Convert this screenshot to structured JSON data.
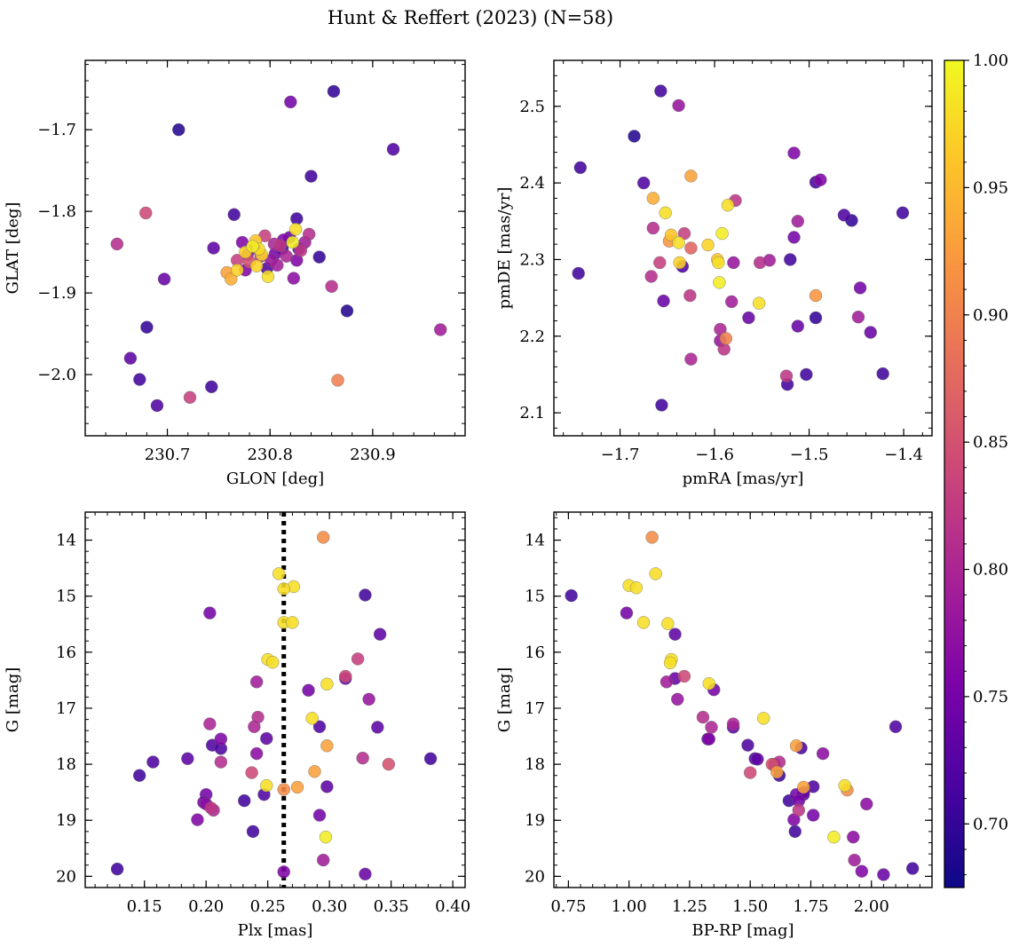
{
  "title": "Hunt & Reffert (2023) (N=58)",
  "colorbar": {
    "ticks": [
      0.7,
      0.75,
      0.8,
      0.85,
      0.9,
      0.95,
      1.0
    ],
    "tick_labels": [
      "0.70",
      "0.75",
      "0.80",
      "0.85",
      "0.90",
      "0.95",
      "1.00"
    ],
    "range": [
      0.675,
      1.0
    ],
    "colormap": "plasma"
  },
  "chart_data": [
    {
      "type": "scatter",
      "name": "glon-glat",
      "xlabel": "GLON [deg]",
      "ylabel": "GLAT [deg]",
      "xlim": [
        230.62,
        230.99
      ],
      "ylim": [
        -2.075,
        -1.615
      ],
      "y_inverted": false,
      "xticks": [
        230.7,
        230.8,
        230.9
      ],
      "xtick_labels": [
        "230.7",
        "230.8",
        "230.9"
      ],
      "yticks": [
        -1.7,
        -1.8,
        -1.9,
        -2.0
      ],
      "ytick_labels": [
        "−1.7",
        "−1.8",
        "−1.9",
        "−2.0"
      ],
      "points": [
        [
          230.651,
          -1.84,
          0.81
        ],
        [
          230.711,
          -1.7,
          0.69
        ],
        [
          230.679,
          -1.802,
          0.84
        ],
        [
          230.697,
          -1.883,
          0.74
        ],
        [
          230.68,
          -1.942,
          0.7
        ],
        [
          230.664,
          -1.98,
          0.73
        ],
        [
          230.673,
          -2.006,
          0.71
        ],
        [
          230.69,
          -2.038,
          0.72
        ],
        [
          230.722,
          -2.028,
          0.83
        ],
        [
          230.743,
          -2.015,
          0.71
        ],
        [
          230.745,
          -1.845,
          0.73
        ],
        [
          230.765,
          -1.804,
          0.71
        ],
        [
          230.82,
          -1.666,
          0.75
        ],
        [
          230.862,
          -1.653,
          0.7
        ],
        [
          230.92,
          -1.724,
          0.72
        ],
        [
          230.84,
          -1.757,
          0.71
        ],
        [
          230.826,
          -1.809,
          0.71
        ],
        [
          230.848,
          -1.856,
          0.7
        ],
        [
          230.875,
          -1.922,
          0.69
        ],
        [
          230.86,
          -1.892,
          0.81
        ],
        [
          230.966,
          -1.945,
          0.79
        ],
        [
          230.866,
          -2.007,
          0.9
        ],
        [
          230.758,
          -1.875,
          0.93
        ],
        [
          230.762,
          -1.883,
          0.94
        ],
        [
          230.768,
          -1.86,
          0.83
        ],
        [
          230.773,
          -1.838,
          0.76
        ],
        [
          230.776,
          -1.85,
          0.97
        ],
        [
          230.78,
          -1.862,
          0.85
        ],
        [
          230.783,
          -1.843,
          0.99
        ],
        [
          230.786,
          -1.836,
          0.96
        ],
        [
          230.789,
          -1.846,
          0.98
        ],
        [
          230.792,
          -1.853,
          0.97
        ],
        [
          230.795,
          -1.83,
          0.83
        ],
        [
          230.798,
          -1.88,
          0.98
        ],
        [
          230.801,
          -1.86,
          0.78
        ],
        [
          230.804,
          -1.84,
          0.8
        ],
        [
          230.807,
          -1.866,
          0.79
        ],
        [
          230.81,
          -1.842,
          0.82
        ],
        [
          230.813,
          -1.835,
          0.76
        ],
        [
          230.816,
          -1.855,
          0.8
        ],
        [
          230.819,
          -1.832,
          0.74
        ],
        [
          230.822,
          -1.838,
          0.99
        ],
        [
          230.825,
          -1.822,
          0.98
        ],
        [
          230.823,
          -1.882,
          0.77
        ],
        [
          230.826,
          -1.86,
          0.76
        ],
        [
          230.83,
          -1.848,
          0.82
        ],
        [
          230.834,
          -1.838,
          0.79
        ],
        [
          230.838,
          -1.828,
          0.81
        ],
        [
          230.768,
          -1.872,
          0.97
        ],
        [
          230.776,
          -1.872,
          0.76
        ],
        [
          230.787,
          -1.867,
          0.97
        ],
        [
          230.791,
          -1.855,
          0.82
        ],
        [
          230.785,
          -1.845,
          0.73
        ],
        [
          230.778,
          -1.853,
          0.79
        ],
        [
          230.805,
          -1.852,
          0.75
        ],
        [
          230.797,
          -1.87,
          0.72
        ],
        [
          230.812,
          -1.846,
          0.71
        ],
        [
          230.828,
          -1.846,
          0.73
        ]
      ]
    },
    {
      "type": "scatter",
      "name": "pmra-pmde",
      "xlabel": "pmRA [mas/yr]",
      "ylabel": "pmDE [mas/yr]",
      "xlim": [
        -1.77,
        -1.37
      ],
      "ylim": [
        2.07,
        2.56
      ],
      "y_inverted": false,
      "xticks": [
        -1.7,
        -1.6,
        -1.5,
        -1.4
      ],
      "xtick_labels": [
        "−1.7",
        "−1.6",
        "−1.5",
        "−1.4"
      ],
      "yticks": [
        2.1,
        2.2,
        2.3,
        2.4,
        2.5
      ],
      "ytick_labels": [
        "2.1",
        "2.2",
        "2.3",
        "2.4",
        "2.5"
      ],
      "points": [
        [
          -1.742,
          2.42,
          0.71
        ],
        [
          -1.744,
          2.282,
          0.71
        ],
        [
          -1.685,
          2.461,
          0.69
        ],
        [
          -1.675,
          2.4,
          0.72
        ],
        [
          -1.657,
          2.52,
          0.71
        ],
        [
          -1.638,
          2.501,
          0.78
        ],
        [
          -1.665,
          2.38,
          0.94
        ],
        [
          -1.652,
          2.361,
          0.98
        ],
        [
          -1.646,
          2.332,
          0.96
        ],
        [
          -1.625,
          2.409,
          0.93
        ],
        [
          -1.665,
          2.341,
          0.81
        ],
        [
          -1.658,
          2.296,
          0.83
        ],
        [
          -1.648,
          2.324,
          0.92
        ],
        [
          -1.638,
          2.322,
          0.98
        ],
        [
          -1.632,
          2.334,
          0.83
        ],
        [
          -1.625,
          2.315,
          0.87
        ],
        [
          -1.637,
          2.296,
          0.97
        ],
        [
          -1.634,
          2.291,
          0.72
        ],
        [
          -1.667,
          2.278,
          0.81
        ],
        [
          -1.654,
          2.246,
          0.74
        ],
        [
          -1.626,
          2.253,
          0.82
        ],
        [
          -1.625,
          2.17,
          0.8
        ],
        [
          -1.656,
          2.11,
          0.71
        ],
        [
          -1.607,
          2.319,
          0.97
        ],
        [
          -1.597,
          2.3,
          0.96
        ],
        [
          -1.596,
          2.296,
          0.98
        ],
        [
          -1.595,
          2.27,
          0.99
        ],
        [
          -1.586,
          2.371,
          0.98
        ],
        [
          -1.592,
          2.334,
          0.99
        ],
        [
          -1.578,
          2.377,
          0.82
        ],
        [
          -1.58,
          2.296,
          0.78
        ],
        [
          -1.582,
          2.245,
          0.79
        ],
        [
          -1.594,
          2.209,
          0.8
        ],
        [
          -1.594,
          2.194,
          0.78
        ],
        [
          -1.588,
          2.197,
          0.9
        ],
        [
          -1.59,
          2.183,
          0.82
        ],
        [
          -1.564,
          2.224,
          0.74
        ],
        [
          -1.552,
          2.296,
          0.81
        ],
        [
          -1.553,
          2.243,
          0.98
        ],
        [
          -1.542,
          2.299,
          0.79
        ],
        [
          -1.524,
          2.148,
          0.82
        ],
        [
          -1.523,
          2.137,
          0.71
        ],
        [
          -1.52,
          2.3,
          0.71
        ],
        [
          -1.516,
          2.439,
          0.76
        ],
        [
          -1.516,
          2.329,
          0.75
        ],
        [
          -1.512,
          2.35,
          0.79
        ],
        [
          -1.512,
          2.213,
          0.74
        ],
        [
          -1.503,
          2.15,
          0.71
        ],
        [
          -1.493,
          2.401,
          0.72
        ],
        [
          -1.488,
          2.404,
          0.76
        ],
        [
          -1.493,
          2.224,
          0.7
        ],
        [
          -1.493,
          2.253,
          0.92
        ],
        [
          -1.463,
          2.358,
          0.72
        ],
        [
          -1.455,
          2.351,
          0.7
        ],
        [
          -1.448,
          2.225,
          0.79
        ],
        [
          -1.446,
          2.263,
          0.75
        ],
        [
          -1.435,
          2.205,
          0.74
        ],
        [
          -1.422,
          2.151,
          0.71
        ],
        [
          -1.401,
          2.361,
          0.71
        ]
      ]
    },
    {
      "type": "scatter",
      "name": "plx-g",
      "xlabel": "Plx [mas]",
      "ylabel": "G [mag]",
      "xlim": [
        0.102,
        0.41
      ],
      "ylim": [
        20.2,
        13.5
      ],
      "y_inverted": true,
      "xticks": [
        0.15,
        0.2,
        0.25,
        0.3,
        0.35,
        0.4
      ],
      "xtick_labels": [
        "0.15",
        "0.20",
        "0.25",
        "0.30",
        "0.35",
        "0.40"
      ],
      "yticks": [
        14,
        15,
        16,
        17,
        18,
        19,
        20
      ],
      "ytick_labels": [
        "14",
        "15",
        "16",
        "17",
        "18",
        "19",
        "20"
      ],
      "vline": 0.263,
      "points": [
        [
          0.295,
          13.95,
          0.91
        ],
        [
          0.259,
          14.6,
          0.98
        ],
        [
          0.271,
          14.83,
          0.98
        ],
        [
          0.263,
          14.87,
          0.98
        ],
        [
          0.329,
          14.98,
          0.71
        ],
        [
          0.203,
          15.3,
          0.75
        ],
        [
          0.263,
          15.47,
          0.98
        ],
        [
          0.27,
          15.47,
          0.98
        ],
        [
          0.341,
          15.68,
          0.73
        ],
        [
          0.25,
          16.13,
          0.98
        ],
        [
          0.254,
          16.18,
          0.98
        ],
        [
          0.323,
          16.12,
          0.83
        ],
        [
          0.313,
          16.43,
          0.84
        ],
        [
          0.313,
          16.47,
          0.74
        ],
        [
          0.241,
          16.53,
          0.79
        ],
        [
          0.298,
          16.57,
          0.98
        ],
        [
          0.283,
          16.68,
          0.75
        ],
        [
          0.332,
          16.84,
          0.78
        ],
        [
          0.242,
          17.16,
          0.81
        ],
        [
          0.286,
          17.18,
          0.98
        ],
        [
          0.203,
          17.28,
          0.8
        ],
        [
          0.239,
          17.33,
          0.8
        ],
        [
          0.292,
          17.33,
          0.72
        ],
        [
          0.339,
          17.34,
          0.73
        ],
        [
          0.212,
          17.55,
          0.76
        ],
        [
          0.249,
          17.54,
          0.73
        ],
        [
          0.205,
          17.66,
          0.72
        ],
        [
          0.212,
          17.72,
          0.72
        ],
        [
          0.298,
          17.67,
          0.93
        ],
        [
          0.241,
          17.81,
          0.77
        ],
        [
          0.157,
          17.96,
          0.72
        ],
        [
          0.185,
          17.9,
          0.73
        ],
        [
          0.212,
          17.96,
          0.81
        ],
        [
          0.327,
          17.89,
          0.81
        ],
        [
          0.348,
          18.0,
          0.85
        ],
        [
          0.382,
          17.9,
          0.71
        ],
        [
          0.146,
          18.2,
          0.71
        ],
        [
          0.237,
          18.15,
          0.84
        ],
        [
          0.288,
          18.13,
          0.93
        ],
        [
          0.249,
          18.38,
          0.98
        ],
        [
          0.263,
          18.45,
          0.91
        ],
        [
          0.274,
          18.41,
          0.93
        ],
        [
          0.298,
          18.4,
          0.73
        ],
        [
          0.2,
          18.54,
          0.75
        ],
        [
          0.247,
          18.54,
          0.72
        ],
        [
          0.231,
          18.65,
          0.71
        ],
        [
          0.198,
          18.68,
          0.75
        ],
        [
          0.2,
          18.71,
          0.77
        ],
        [
          0.206,
          18.82,
          0.8
        ],
        [
          0.193,
          18.99,
          0.76
        ],
        [
          0.292,
          18.91,
          0.75
        ],
        [
          0.238,
          19.2,
          0.71
        ],
        [
          0.297,
          19.3,
          0.99
        ],
        [
          0.295,
          19.71,
          0.79
        ],
        [
          0.128,
          19.87,
          0.71
        ],
        [
          0.263,
          19.92,
          0.76
        ],
        [
          0.329,
          19.96,
          0.74
        ],
        [
          0.204,
          18.78,
          0.82
        ]
      ]
    },
    {
      "type": "scatter",
      "name": "bprp-g",
      "xlabel": "BP-RP [mag]",
      "ylabel": "G [mag]",
      "xlim": [
        0.69,
        2.25
      ],
      "ylim": [
        20.2,
        13.5
      ],
      "y_inverted": true,
      "xticks": [
        0.75,
        1.0,
        1.25,
        1.5,
        1.75,
        2.0
      ],
      "xtick_labels": [
        "0.75",
        "1.00",
        "1.25",
        "1.50",
        "1.75",
        "2.00"
      ],
      "yticks": [
        14,
        15,
        16,
        17,
        18,
        19,
        20
      ],
      "ytick_labels": [
        "14",
        "15",
        "16",
        "17",
        "18",
        "19",
        "20"
      ],
      "points": [
        [
          1.095,
          13.95,
          0.91
        ],
        [
          1.11,
          14.6,
          0.98
        ],
        [
          1.0,
          14.81,
          0.98
        ],
        [
          1.03,
          14.85,
          0.98
        ],
        [
          0.762,
          14.99,
          0.71
        ],
        [
          0.99,
          15.3,
          0.75
        ],
        [
          1.06,
          15.47,
          0.98
        ],
        [
          1.16,
          15.49,
          0.98
        ],
        [
          1.19,
          15.68,
          0.73
        ],
        [
          1.175,
          16.13,
          0.98
        ],
        [
          1.17,
          16.19,
          0.98
        ],
        [
          1.228,
          16.43,
          0.84
        ],
        [
          1.19,
          16.47,
          0.74
        ],
        [
          1.155,
          16.53,
          0.79
        ],
        [
          1.33,
          16.56,
          0.98
        ],
        [
          1.35,
          16.67,
          0.75
        ],
        [
          1.2,
          16.84,
          0.78
        ],
        [
          1.305,
          17.16,
          0.81
        ],
        [
          1.555,
          17.18,
          0.98
        ],
        [
          1.43,
          17.28,
          0.8
        ],
        [
          1.34,
          17.34,
          0.8
        ],
        [
          1.43,
          17.34,
          0.73
        ],
        [
          2.1,
          17.33,
          0.72
        ],
        [
          1.33,
          17.55,
          0.76
        ],
        [
          1.325,
          17.55,
          0.73
        ],
        [
          1.49,
          17.66,
          0.72
        ],
        [
          1.69,
          17.67,
          0.93
        ],
        [
          1.71,
          17.71,
          0.72
        ],
        [
          1.8,
          17.81,
          0.77
        ],
        [
          1.52,
          17.9,
          0.72
        ],
        [
          1.53,
          17.91,
          0.73
        ],
        [
          1.59,
          18.0,
          0.85
        ],
        [
          1.62,
          17.96,
          0.81
        ],
        [
          1.6,
          18.02,
          0.71
        ],
        [
          1.61,
          18.14,
          0.93
        ],
        [
          1.5,
          18.15,
          0.84
        ],
        [
          1.62,
          18.2,
          0.71
        ],
        [
          1.76,
          18.4,
          0.72
        ],
        [
          1.72,
          18.41,
          0.93
        ],
        [
          1.89,
          18.38,
          0.98
        ],
        [
          1.9,
          18.46,
          0.91
        ],
        [
          1.69,
          18.54,
          0.75
        ],
        [
          1.72,
          18.54,
          0.72
        ],
        [
          1.66,
          18.65,
          0.71
        ],
        [
          1.7,
          18.65,
          0.75
        ],
        [
          1.98,
          18.71,
          0.77
        ],
        [
          1.7,
          18.82,
          0.82
        ],
        [
          1.76,
          18.91,
          0.75
        ],
        [
          1.68,
          18.99,
          0.76
        ],
        [
          1.685,
          19.2,
          0.71
        ],
        [
          1.845,
          19.3,
          0.99
        ],
        [
          1.925,
          19.3,
          0.77
        ],
        [
          1.93,
          19.71,
          0.79
        ],
        [
          2.17,
          19.86,
          0.71
        ],
        [
          1.96,
          19.91,
          0.76
        ],
        [
          2.05,
          19.97,
          0.74
        ],
        [
          1.72,
          18.5,
          0.74
        ],
        [
          1.6,
          18.0,
          0.8
        ]
      ]
    }
  ]
}
